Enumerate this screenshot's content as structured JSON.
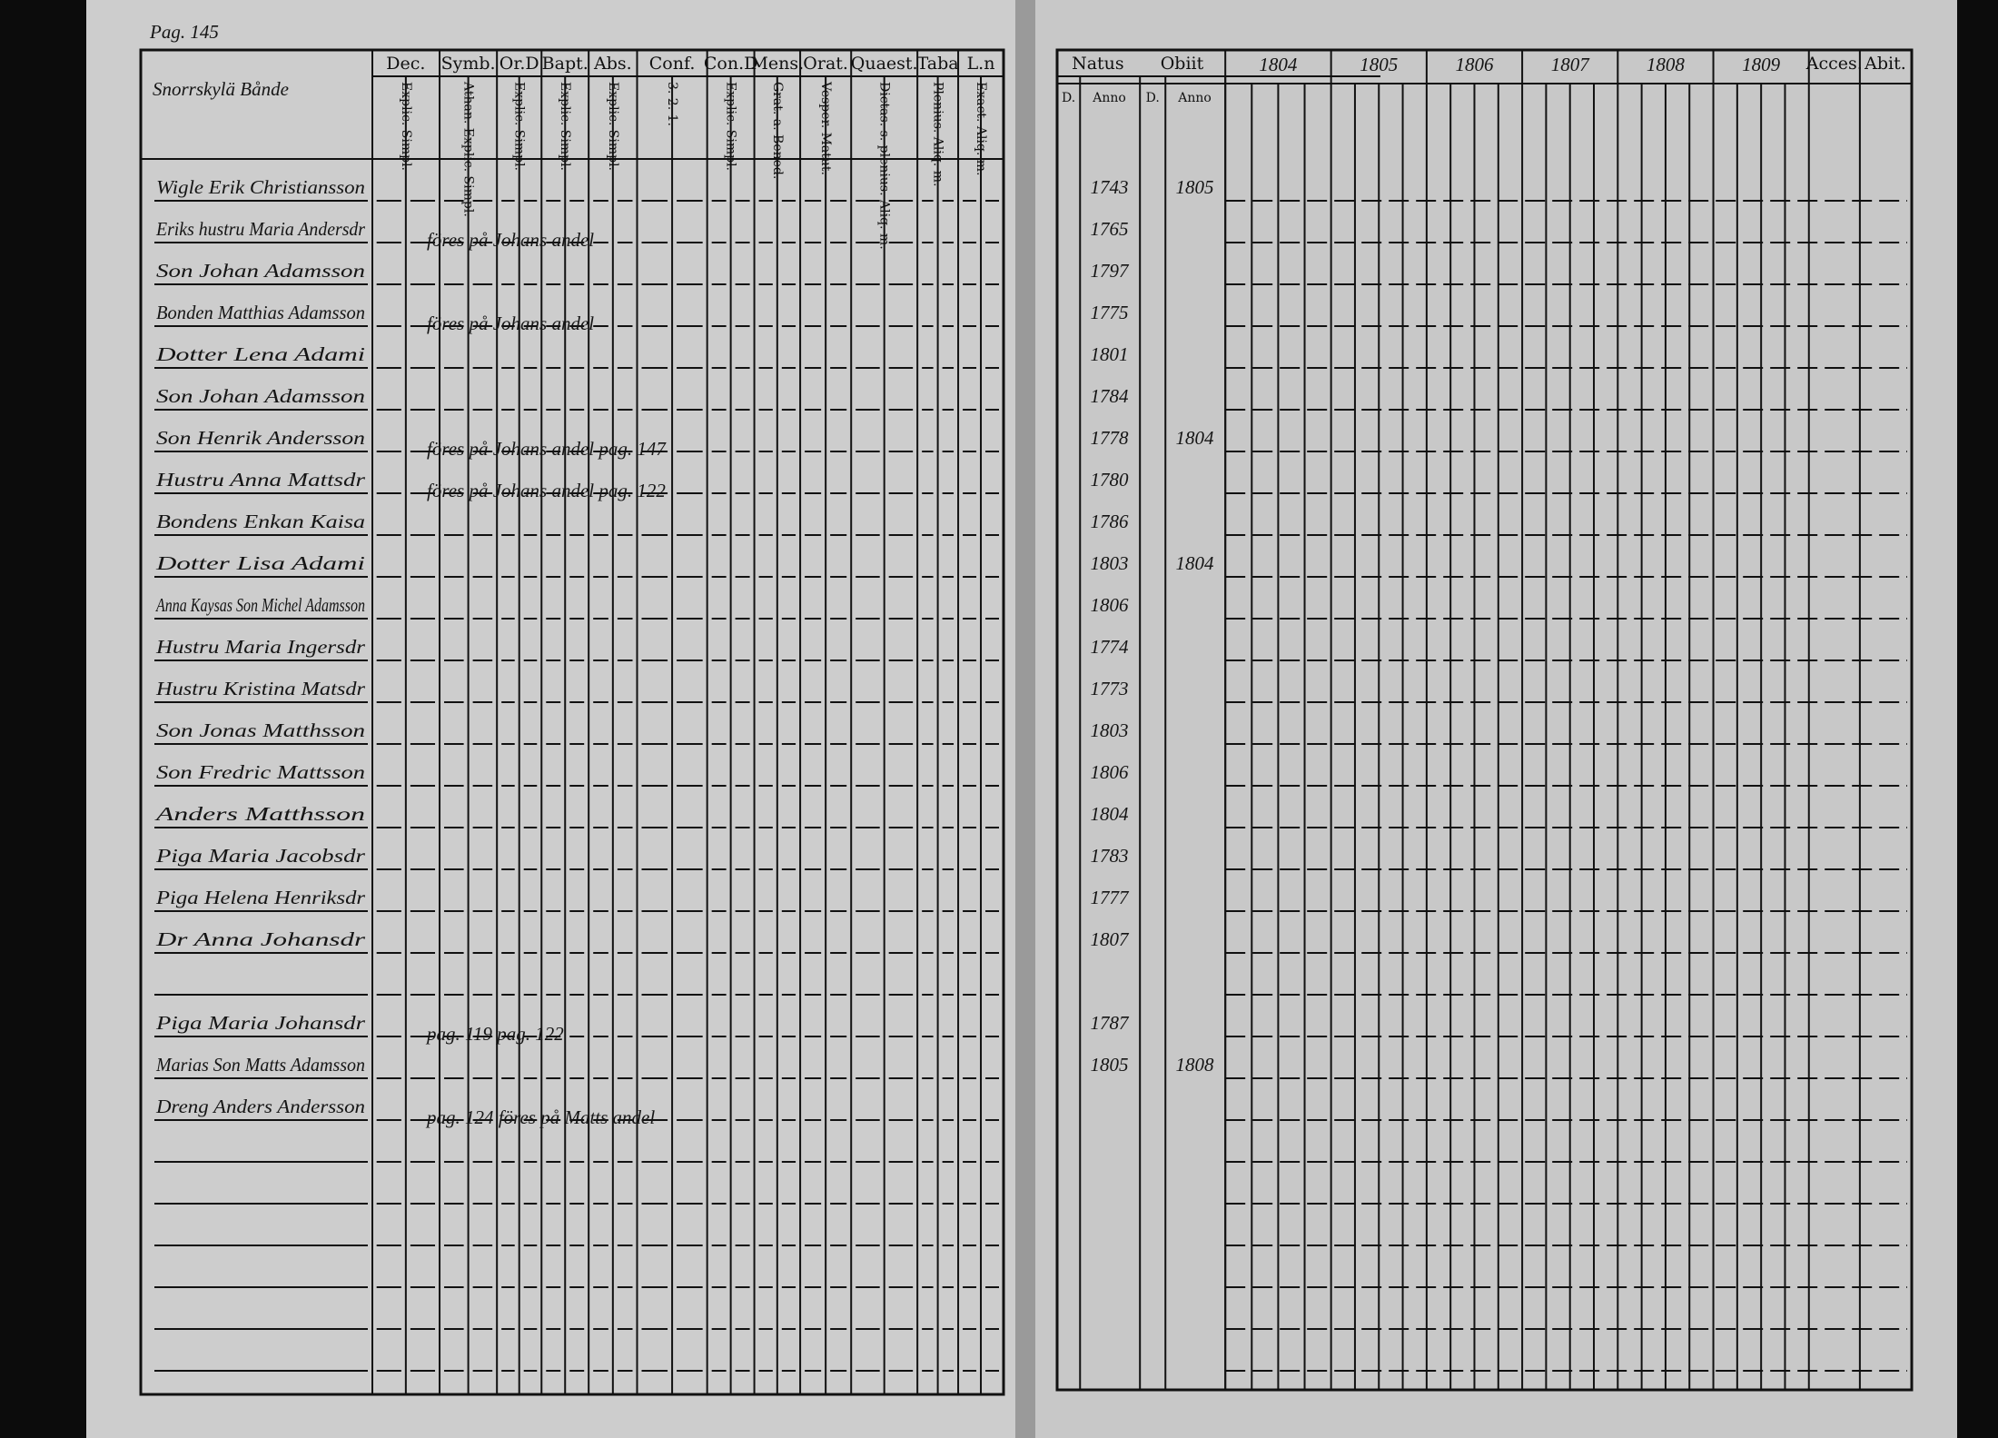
{
  "page_ref": "Pag. 145",
  "left": {
    "place": "Snorrskylä Bånde",
    "columns": [
      {
        "head": "Dec.",
        "sub": "Explic. Simpl."
      },
      {
        "head": "Symb.",
        "sub": "Athan. Explic. Simpl."
      },
      {
        "head": "Or.D",
        "sub": "Explic. Simpl."
      },
      {
        "head": "Bapt.",
        "sub": "Explic. Simpl."
      },
      {
        "head": "Abs.",
        "sub": "Explic. Simpl."
      },
      {
        "head": "Conf.",
        "sub": "3. 2. 1."
      },
      {
        "head": "Con.D",
        "sub": "Explic. Simpl."
      },
      {
        "head": "Mens.",
        "sub": "Grat. a. Bened."
      },
      {
        "head": "Orat.",
        "sub": "Vesper. Matut."
      },
      {
        "head": "Quaest.",
        "sub": "Dictas. s. plenius. Aliq. m."
      },
      {
        "head": "Taba",
        "sub": "Plenius. Aliq. m."
      },
      {
        "head": "L.n",
        "sub": "Exact. Aliq. m."
      }
    ]
  },
  "right": {
    "natus": "Natus",
    "obiit": "Obiit",
    "natus_sub": [
      "D.",
      "Anno"
    ],
    "obiit_sub": [
      "D.",
      "Anno"
    ],
    "years": [
      "1804",
      "1805",
      "1806",
      "1807",
      "1808",
      "1809"
    ],
    "acces": "Acces.",
    "abit": "Abit."
  },
  "rows": [
    {
      "name": "Wigle Erik Christiansson",
      "born": "1743",
      "died": "1805"
    },
    {
      "name": "Eriks hustru Maria Andersdr",
      "born": "1765",
      "note": "föres på Johans andel"
    },
    {
      "name": "Son Johan Adamsson",
      "born": "1797"
    },
    {
      "name": "Bonden Matthias Adamsson",
      "born": "1775",
      "note": "föres på Johans andel"
    },
    {
      "name": "Dotter Lena Adami",
      "born": "1801"
    },
    {
      "name": "Son Johan Adamsson",
      "born": "1784"
    },
    {
      "name": "Son Henrik Andersson",
      "born": "1778",
      "died": "1804",
      "note": "föres på Johans andel pag. 147"
    },
    {
      "name": "Hustru Anna Mattsdr",
      "born": "1780",
      "note": "föres på Johans andel pag. 122"
    },
    {
      "name": "Bondens Enkan Kaisa",
      "born": "1786"
    },
    {
      "name": "Dotter Lisa Adami",
      "born": "1803",
      "died": "1804"
    },
    {
      "name": "Anna Kaysas Son Michel Adamsson",
      "born": "1806"
    },
    {
      "name": "Hustru Maria Ingersdr",
      "born": "1774"
    },
    {
      "name": "Hustru Kristina Matsdr",
      "born": "1773"
    },
    {
      "name": "Son Jonas Matthsson",
      "born": "1803"
    },
    {
      "name": "Son Fredric Mattsson",
      "born": "1806"
    },
    {
      "name": "Anders Matthsson",
      "born": "1804"
    },
    {
      "name": "Piga Maria Jacobsdr",
      "born": "1783"
    },
    {
      "name": "Piga Helena Henriksdr",
      "born": "1777"
    },
    {
      "name": "Dr Anna Johansdr",
      "born": "1807"
    },
    {
      "name": "Piga Maria Johansdr",
      "born": "1787",
      "note": "pag. 119 pag. 122"
    },
    {
      "name": "Marias Son Matts Adamsson",
      "born": "1805",
      "died": "1808"
    },
    {
      "name": "Dreng Anders Andersson",
      "note": "pag. 124 föres på Matts andel"
    }
  ]
}
